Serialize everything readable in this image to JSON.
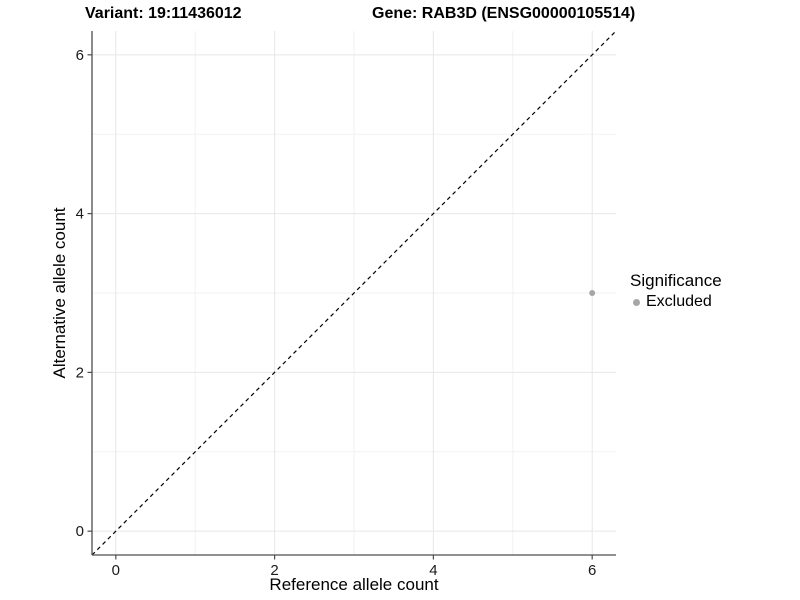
{
  "header": {
    "title_left": "Variant: 19:11436012",
    "title_right": "Gene: RAB3D (ENSG00000105514)"
  },
  "chart_data": {
    "type": "scatter",
    "title": "Variant: 19:11436012 — Gene: RAB3D (ENSG00000105514)",
    "xlabel": "Reference allele count",
    "ylabel": "Alternative allele count",
    "xlim": [
      -0.3,
      6.3
    ],
    "ylim": [
      -0.3,
      6.3
    ],
    "xticks": [
      0,
      2,
      4,
      6
    ],
    "yticks": [
      0,
      2,
      4,
      6
    ],
    "xticks_minor": [
      1,
      3,
      5
    ],
    "yticks_minor": [
      1,
      3,
      5
    ],
    "grid": "major+minor",
    "points": [
      {
        "x": 6,
        "y": 3,
        "significance": "Excluded"
      }
    ],
    "reference_line": {
      "kind": "identity",
      "slope": 1,
      "intercept": 0,
      "linetype": "dashed"
    },
    "legend": {
      "title": "Significance",
      "position": "right",
      "entries": [
        {
          "label": "Excluded",
          "color": "#a6a6a6"
        }
      ]
    },
    "colors": {
      "background": "#ffffff",
      "point": "#a6a6a6",
      "grid_major": "#e7e7e7",
      "grid_minor": "#f2f2f2",
      "axis_line": "#4d4d4d",
      "tick_mark": "#4d4d4d",
      "tick_label": "#1a1a1a",
      "reference_line": "#000000"
    }
  }
}
